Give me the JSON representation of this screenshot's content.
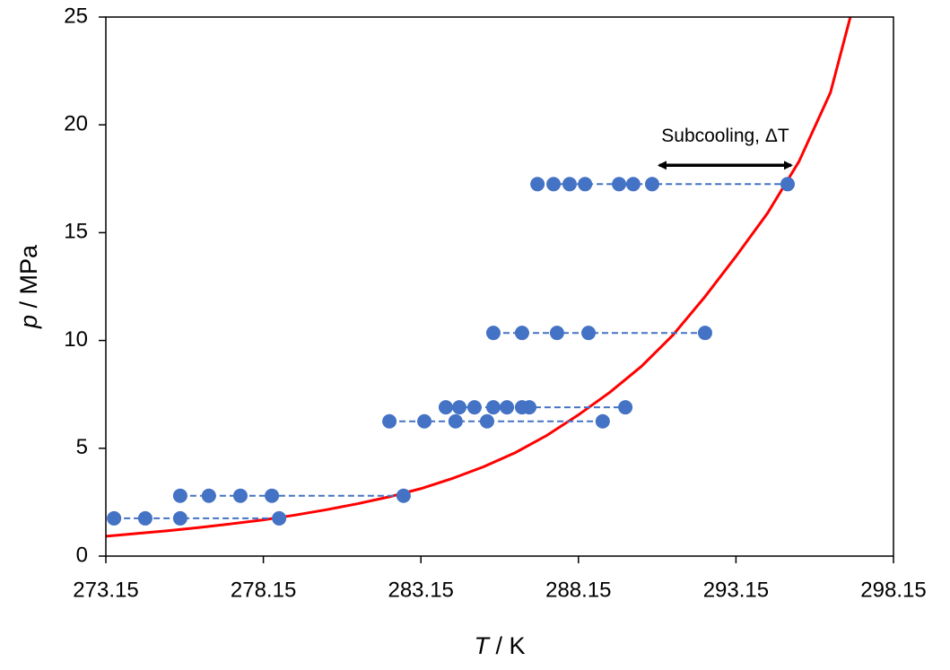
{
  "chart_data": {
    "type": "scatter",
    "x_label_symbol": "T",
    "x_label_unit": " / K",
    "y_label_symbol": "p",
    "y_label_unit": " / MPa",
    "xlim": [
      273.15,
      298.15
    ],
    "xticks": [
      273.15,
      278.15,
      283.15,
      288.15,
      293.15,
      298.15
    ],
    "ylim": [
      0,
      25
    ],
    "yticks": [
      0,
      5,
      10,
      15,
      20,
      25
    ],
    "annotation": "Subcooling, ΔT",
    "series": [
      {
        "color": "#4472c4",
        "x": [
          286.85,
          287.36,
          287.87,
          288.36,
          289.44,
          289.89,
          290.49,
          294.79
        ],
        "y": [
          17.25,
          17.25,
          17.25,
          17.25,
          17.25,
          17.25,
          17.25,
          17.25
        ]
      },
      {
        "color": "#4472c4",
        "x": [
          285.45,
          286.36,
          287.47,
          288.47,
          292.17
        ],
        "y": [
          10.35,
          10.35,
          10.35,
          10.35,
          10.35
        ]
      },
      {
        "color": "#4472c4",
        "x": [
          283.94,
          284.37,
          284.85,
          285.45,
          285.88,
          286.36,
          286.59,
          289.64
        ],
        "y": [
          6.9,
          6.9,
          6.9,
          6.9,
          6.9,
          6.9,
          6.9,
          6.9
        ]
      },
      {
        "color": "#4472c4",
        "x": [
          282.15,
          283.26,
          284.25,
          285.25,
          288.92
        ],
        "y": [
          6.25,
          6.25,
          6.25,
          6.25,
          6.25
        ]
      },
      {
        "color": "#4472c4",
        "x": [
          275.51,
          276.42,
          277.42,
          278.42,
          282.6
        ],
        "y": [
          2.8,
          2.8,
          2.8,
          2.8,
          2.8
        ]
      },
      {
        "color": "#4472c4",
        "x": [
          273.41,
          274.4,
          275.51,
          278.65
        ],
        "y": [
          1.75,
          1.75,
          1.75,
          1.75
        ]
      }
    ],
    "curve": {
      "color": "#ff0000",
      "x": [
        273.15,
        274.15,
        275.15,
        276.15,
        277.15,
        278.15,
        279.15,
        280.15,
        281.15,
        282.15,
        283.15,
        284.15,
        285.15,
        286.15,
        287.15,
        288.15,
        289.15,
        290.15,
        291.15,
        292.15,
        293.15,
        294.15,
        295.15,
        296.15,
        296.78
      ],
      "y": [
        0.92,
        1.05,
        1.18,
        1.33,
        1.5,
        1.68,
        1.9,
        2.15,
        2.43,
        2.75,
        3.13,
        3.6,
        4.15,
        4.8,
        5.6,
        6.55,
        7.6,
        8.8,
        10.25,
        12.0,
        13.9,
        15.9,
        18.3,
        21.5,
        25.0
      ]
    }
  }
}
